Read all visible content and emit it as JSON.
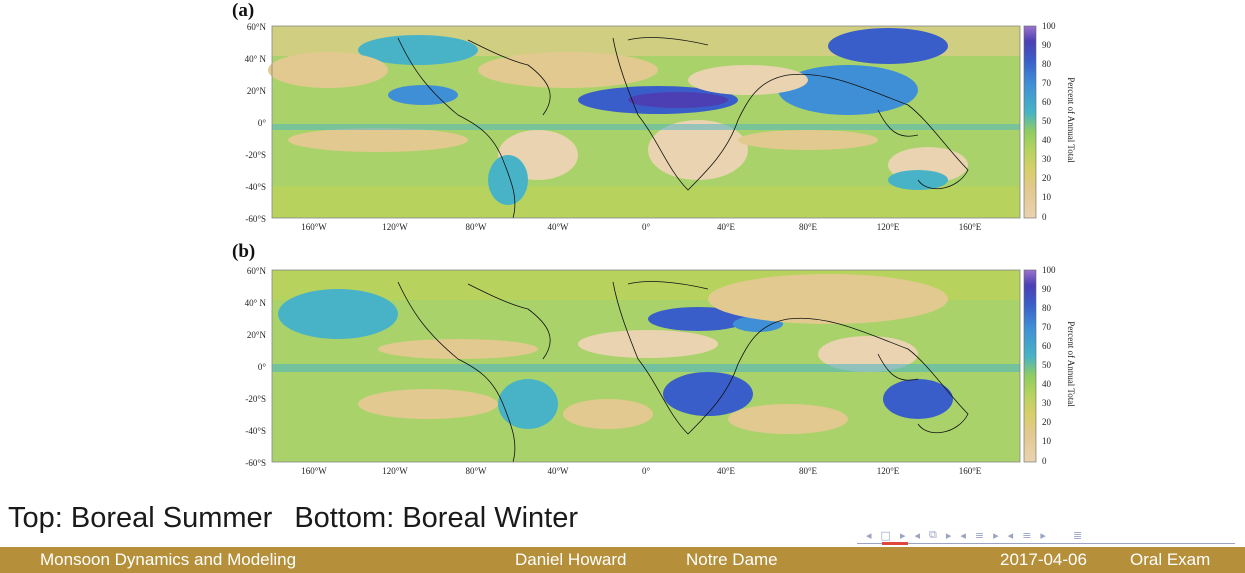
{
  "panels": [
    {
      "label": "(a)",
      "colorbar_title": "Percent of Annual Total"
    },
    {
      "label": "(b)",
      "colorbar_title": "Percent of Annual Total"
    }
  ],
  "lat_labels": [
    "60°N",
    "40° N",
    "20°N",
    "0°",
    "-20°S",
    "-40°S",
    "-60°S"
  ],
  "lon_labels": [
    "160°W",
    "120°W",
    "80°W",
    "40°W",
    "0°",
    "40°E",
    "80°E",
    "120°E",
    "160°E"
  ],
  "colorbar_ticks": [
    "100",
    "90",
    "80",
    "70",
    "60",
    "50",
    "40",
    "30",
    "20",
    "10",
    "0"
  ],
  "colorbar_colors": [
    "#e9d3b0",
    "#e2c98f",
    "#d7cf6a",
    "#b7d35e",
    "#8fcc63",
    "#5fbf7c",
    "#48b3c6",
    "#3f8fd6",
    "#3a5ec9",
    "#4b3fb3",
    "#9b73cc"
  ],
  "caption": {
    "top": "Top: Boreal Summer",
    "bottom": "Bottom: Boreal Winter"
  },
  "nav_icons": [
    "frame-left-icon",
    "frame-icon",
    "frame-right-icon",
    "subsection-left-icon",
    "subsection-icon",
    "subsection-right-icon",
    "section-left-icon",
    "section-icon",
    "section-right-icon",
    "toc-left-icon",
    "toc-icon",
    "toc-right-icon",
    "search-icon"
  ],
  "footer": {
    "title": "Monsoon Dynamics and Modeling",
    "author": "Daniel Howard",
    "institute": "Notre Dame",
    "date": "2017-04-06",
    "event": "Oral Exam"
  },
  "colors": {
    "footer_bg": "#b58f3a",
    "nav": "#9aa3c4"
  }
}
